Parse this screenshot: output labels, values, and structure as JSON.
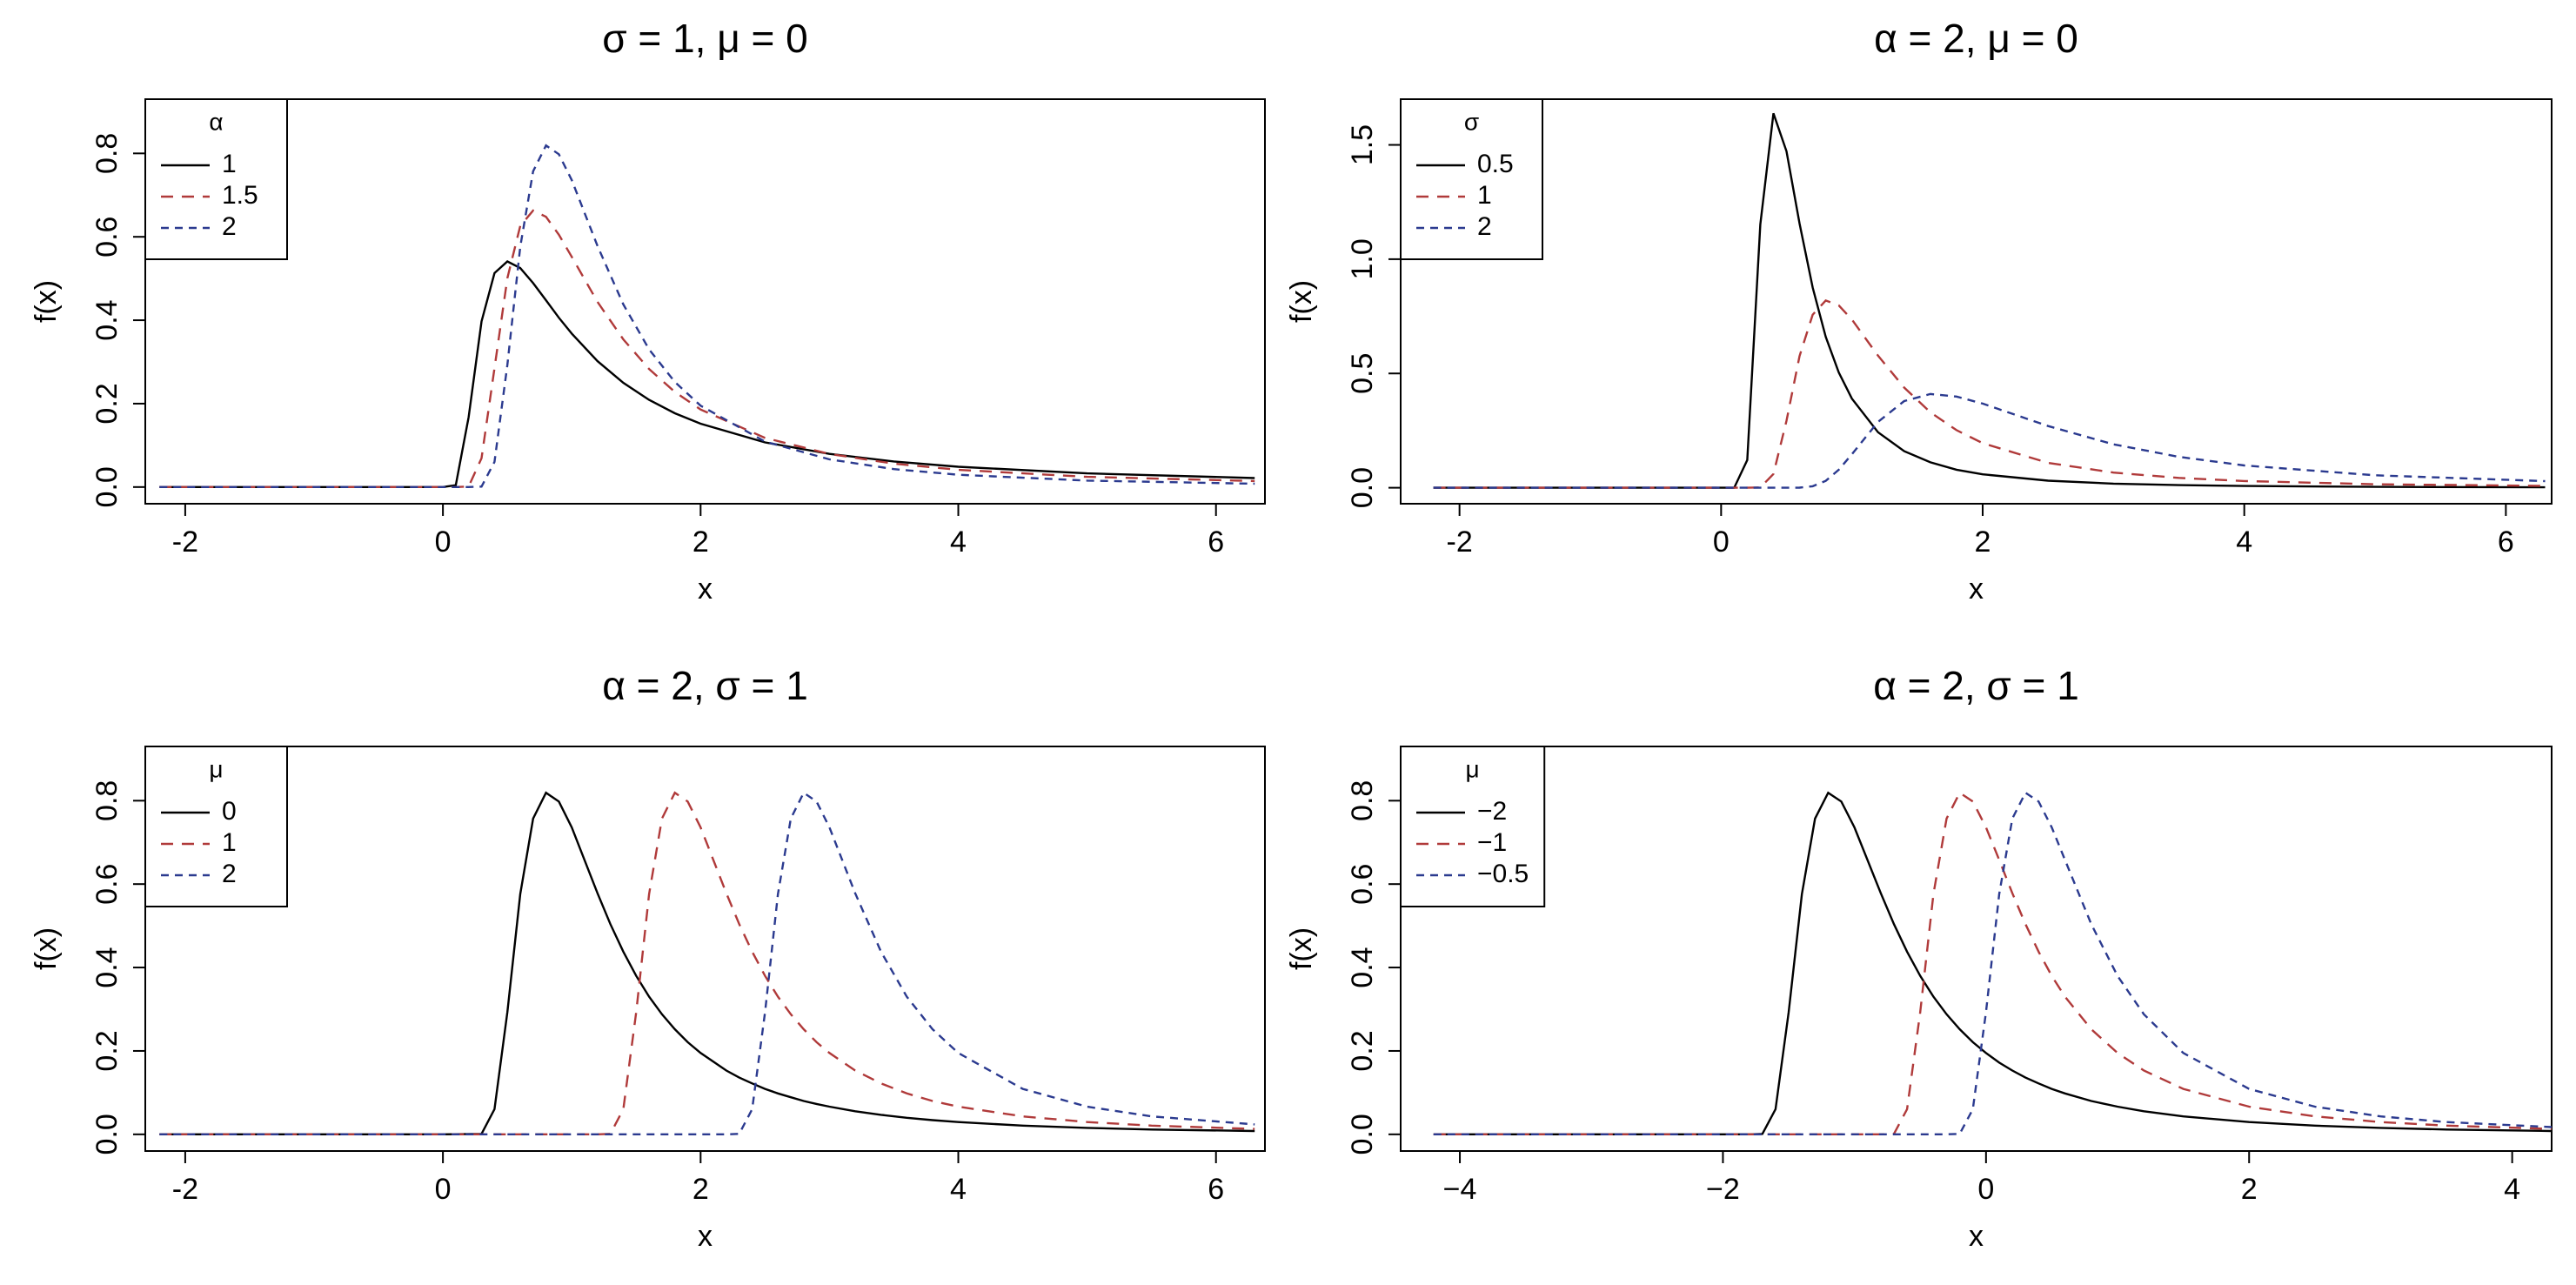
{
  "chart_data": [
    {
      "type": "line",
      "title": "σ = 1, μ = 0",
      "xlabel": "x",
      "ylabel": "f(x)",
      "legend_title": "α",
      "legend": "topleft",
      "x": [
        -2.2,
        0,
        0.1,
        0.2,
        0.3,
        0.4,
        0.5,
        0.6,
        0.7,
        0.8,
        0.9,
        1,
        1.2,
        1.4,
        1.6,
        1.8,
        2,
        2.5,
        3,
        3.5,
        4,
        5,
        6.3
      ],
      "series": [
        {
          "name": "1",
          "color": "#000000",
          "lty": "solid",
          "values": [
            0,
            0,
            0.0045,
            0.168,
            0.397,
            0.513,
            0.541,
            0.525,
            0.489,
            0.448,
            0.406,
            0.368,
            0.302,
            0.25,
            0.209,
            0.177,
            0.152,
            0.107,
            0.0796,
            0.0613,
            0.0487,
            0.0327,
            0.0215
          ]
        },
        {
          "name": "1.5",
          "color": "#b03a3a",
          "lty": "dashed",
          "values": [
            0,
            0,
            0,
            0.0012,
            0.069,
            0.285,
            0.501,
            0.626,
            0.663,
            0.648,
            0.605,
            0.552,
            0.444,
            0.354,
            0.283,
            0.228,
            0.186,
            0.118,
            0.0794,
            0.0562,
            0.0414,
            0.0245,
            0.0145
          ]
        },
        {
          "name": "2",
          "color": "#2b3a8f",
          "lty": "dotted",
          "values": [
            0,
            0,
            0,
            0,
            0.0011,
            0.0603,
            0.293,
            0.576,
            0.757,
            0.819,
            0.798,
            0.736,
            0.578,
            0.438,
            0.33,
            0.252,
            0.195,
            0.109,
            0.0663,
            0.043,
            0.0294,
            0.0154,
            0.0079
          ]
        }
      ],
      "xlim": [
        -2.31,
        6.38
      ],
      "ylim": [
        -0.04,
        0.93
      ],
      "xticks": [
        -2,
        0,
        2,
        4,
        6
      ],
      "yticks": [
        {
          "value": 0,
          "label": "0.0"
        },
        0.2,
        0.4,
        0.6,
        0.8
      ]
    },
    {
      "type": "line",
      "title": "α = 2, μ = 0",
      "xlabel": "x",
      "ylabel": "f(x)",
      "legend_title": "σ",
      "legend": "topleft",
      "x": [
        -2.2,
        0,
        0.1,
        0.2,
        0.3,
        0.4,
        0.5,
        0.6,
        0.7,
        0.8,
        0.9,
        1,
        1.2,
        1.4,
        1.6,
        1.8,
        2,
        2.5,
        3,
        3.5,
        4,
        5,
        6.3
      ],
      "series": [
        {
          "name": "0.5",
          "color": "#000000",
          "lty": "solid",
          "values": [
            0,
            0,
            0,
            0.121,
            1.152,
            1.638,
            1.472,
            1.156,
            0.876,
            0.66,
            0.504,
            0.39,
            0.243,
            0.16,
            0.111,
            0.079,
            0.0588,
            0.0308,
            0.018,
            0.0114,
            0.0076,
            0.004,
            0.002
          ]
        },
        {
          "name": "1",
          "color": "#b03a3a",
          "lty": "dashed",
          "values": [
            0,
            0,
            0,
            0,
            0.0011,
            0.0603,
            0.293,
            0.576,
            0.757,
            0.819,
            0.798,
            0.736,
            0.578,
            0.438,
            0.33,
            0.252,
            0.195,
            0.109,
            0.0663,
            0.043,
            0.0294,
            0.0154,
            0.0079
          ]
        },
        {
          "name": "2",
          "color": "#2b3a8f",
          "lty": "dotted",
          "values": [
            0,
            0,
            0,
            0,
            0,
            0,
            0,
            0.0006,
            0.0067,
            0.0302,
            0.0787,
            0.1465,
            0.288,
            0.379,
            0.41,
            0.399,
            0.368,
            0.27,
            0.19,
            0.135,
            0.0975,
            0.0545,
            0.029
          ]
        }
      ],
      "xlim": [
        -2.45,
        6.35
      ],
      "ylim": [
        -0.07,
        1.7
      ],
      "xticks": [
        -2,
        0,
        2,
        4,
        6
      ],
      "yticks": [
        {
          "value": 0,
          "label": "0.0"
        },
        0.5,
        {
          "value": 1,
          "label": "1.0"
        },
        1.5
      ]
    },
    {
      "type": "line",
      "title": "α = 2, σ = 1",
      "xlabel": "x",
      "ylabel": "f(x)",
      "legend_title": "μ",
      "legend": "topleft",
      "x": [
        -2.2,
        0,
        0.3,
        0.4,
        0.5,
        0.6,
        0.7,
        0.8,
        0.9,
        1,
        1.2,
        1.3,
        1.4,
        1.5,
        1.6,
        1.7,
        1.8,
        1.9,
        2,
        2.2,
        2.3,
        2.4,
        2.5,
        2.6,
        2.7,
        2.8,
        2.9,
        3,
        3.2,
        3.4,
        3.6,
        3.8,
        4,
        4.5,
        5,
        5.5,
        6.3
      ],
      "series": [
        {
          "name": "0",
          "color": "#000000",
          "lty": "solid",
          "values": [
            0,
            0,
            0.0011,
            0.0603,
            0.293,
            0.576,
            0.757,
            0.819,
            0.798,
            0.736,
            0.578,
            0.504,
            0.438,
            0.38,
            0.33,
            0.288,
            0.252,
            0.221,
            0.195,
            0.153,
            0.136,
            0.122,
            0.109,
            0.098,
            0.089,
            0.08,
            0.0728,
            0.0663,
            0.0554,
            0.0467,
            0.0397,
            0.034,
            0.0294,
            0.0209,
            0.0154,
            0.0116,
            0.0079
          ]
        },
        {
          "name": "1",
          "color": "#b03a3a",
          "lty": "dashed",
          "values": [
            0,
            0,
            0,
            0,
            0,
            0,
            0,
            0,
            0,
            0,
            0,
            0.0011,
            0.0603,
            0.293,
            0.576,
            0.757,
            0.819,
            0.798,
            0.736,
            0.578,
            0.504,
            0.438,
            0.38,
            0.33,
            0.288,
            0.252,
            0.221,
            0.195,
            0.153,
            0.122,
            0.098,
            0.08,
            0.0663,
            0.043,
            0.0294,
            0.0209,
            0.013
          ]
        },
        {
          "name": "2",
          "color": "#2b3a8f",
          "lty": "dotted",
          "values": [
            0,
            0,
            0,
            0,
            0,
            0,
            0,
            0,
            0,
            0,
            0,
            0,
            0,
            0,
            0,
            0,
            0,
            0,
            0,
            0,
            0.0011,
            0.0603,
            0.293,
            0.576,
            0.757,
            0.819,
            0.798,
            0.736,
            0.578,
            0.438,
            0.33,
            0.252,
            0.195,
            0.109,
            0.0663,
            0.043,
            0.0238
          ]
        }
      ],
      "xlim": [
        -2.31,
        6.38
      ],
      "ylim": [
        -0.04,
        0.93
      ],
      "xticks": [
        -2,
        0,
        2,
        4,
        6
      ],
      "yticks": [
        {
          "value": 0,
          "label": "0.0"
        },
        0.2,
        0.4,
        0.6,
        0.8
      ]
    },
    {
      "type": "line",
      "title": "α = 2, σ = 1",
      "xlabel": "x",
      "ylabel": "f(x)",
      "legend_title": "μ",
      "legend": "topleft",
      "x": [
        -4.2,
        -1.8,
        -1.7,
        -1.6,
        -1.5,
        -1.4,
        -1.3,
        -1.2,
        -1.1,
        -1,
        -0.8,
        -0.7,
        -0.6,
        -0.5,
        -0.4,
        -0.3,
        -0.2,
        -0.1,
        0,
        0.1,
        0.2,
        0.3,
        0.4,
        0.5,
        0.6,
        0.8,
        1,
        1.2,
        1.5,
        2,
        2.5,
        3,
        3.5,
        4.3
      ],
      "series": [
        {
          "name": "−2",
          "color": "#000000",
          "lty": "solid",
          "values": [
            0,
            0,
            0.0011,
            0.0603,
            0.293,
            0.576,
            0.757,
            0.819,
            0.798,
            0.736,
            0.578,
            0.504,
            0.438,
            0.38,
            0.33,
            0.288,
            0.252,
            0.221,
            0.195,
            0.172,
            0.153,
            0.136,
            0.122,
            0.109,
            0.098,
            0.08,
            0.0663,
            0.0554,
            0.043,
            0.0294,
            0.0209,
            0.0154,
            0.0116,
            0.0079
          ]
        },
        {
          "name": "−1",
          "color": "#b03a3a",
          "lty": "dashed",
          "values": [
            0,
            0,
            0,
            0,
            0,
            0,
            0,
            0,
            0,
            0,
            0,
            0.0011,
            0.0603,
            0.293,
            0.576,
            0.757,
            0.819,
            0.798,
            0.736,
            0.658,
            0.578,
            0.504,
            0.438,
            0.38,
            0.33,
            0.252,
            0.195,
            0.153,
            0.109,
            0.0663,
            0.043,
            0.0294,
            0.0209,
            0.013
          ]
        },
        {
          "name": "−0.5",
          "color": "#2b3a8f",
          "lty": "dotted",
          "values": [
            0,
            0,
            0,
            0,
            0,
            0,
            0,
            0,
            0,
            0,
            0,
            0,
            0,
            0,
            0,
            0,
            0.0011,
            0.0603,
            0.293,
            0.576,
            0.757,
            0.819,
            0.798,
            0.736,
            0.658,
            0.504,
            0.38,
            0.288,
            0.195,
            0.109,
            0.0663,
            0.043,
            0.0294,
            0.0173
          ]
        }
      ],
      "xlim": [
        -4.45,
        4.3
      ],
      "ylim": [
        -0.04,
        0.93
      ],
      "xticks": [
        {
          "value": -4,
          "label": "−4"
        },
        {
          "value": -2,
          "label": "−2"
        },
        0,
        2,
        4
      ],
      "yticks": [
        {
          "value": 0,
          "label": "0.0"
        },
        0.2,
        0.4,
        0.6,
        0.8
      ]
    }
  ]
}
